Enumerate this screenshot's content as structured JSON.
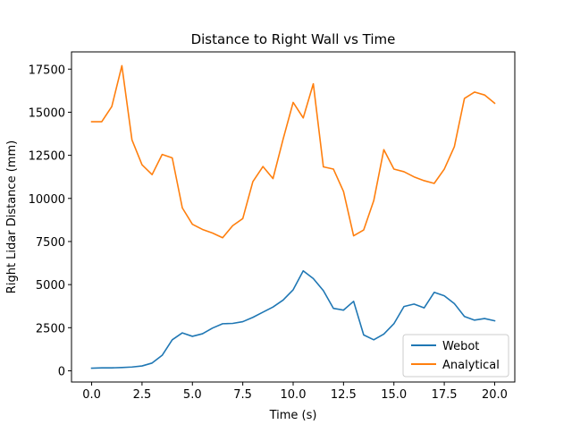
{
  "chart_data": {
    "type": "line",
    "title": "Distance to Right Wall vs Time",
    "xlabel": "Time (s)",
    "ylabel": "Right Lidar Distance (mm)",
    "xlim": [
      -1.0,
      21.0
    ],
    "ylim": [
      -650,
      18500
    ],
    "xticks": [
      0.0,
      2.5,
      5.0,
      7.5,
      10.0,
      12.5,
      15.0,
      17.5,
      20.0
    ],
    "xtick_labels": [
      "0.0",
      "2.5",
      "5.0",
      "7.5",
      "10.0",
      "12.5",
      "15.0",
      "17.5",
      "20.0"
    ],
    "yticks": [
      0,
      2500,
      5000,
      7500,
      10000,
      12500,
      15000,
      17500
    ],
    "ytick_labels": [
      "0",
      "2500",
      "5000",
      "7500",
      "10000",
      "12500",
      "15000",
      "17500"
    ],
    "grid": false,
    "legend_position": "lower right",
    "x": [
      0.0,
      0.5,
      1.0,
      1.5,
      2.0,
      2.5,
      3.0,
      3.5,
      4.0,
      4.5,
      5.0,
      5.5,
      6.0,
      6.5,
      7.0,
      7.5,
      8.0,
      8.5,
      9.0,
      9.5,
      10.0,
      10.5,
      11.0,
      11.5,
      12.0,
      12.5,
      13.0,
      13.5,
      14.0,
      14.5,
      15.0,
      15.5,
      16.0,
      16.5,
      17.0,
      17.5,
      18.0,
      18.5,
      19.0,
      19.5,
      20.0
    ],
    "series": [
      {
        "name": "Webot",
        "color": "#1f77b4",
        "values": [
          150,
          170,
          170,
          190,
          220,
          280,
          450,
          900,
          1800,
          2200,
          2000,
          2150,
          2480,
          2730,
          2750,
          2850,
          3100,
          3400,
          3700,
          4100,
          4700,
          5800,
          5350,
          4650,
          3620,
          3520,
          4030,
          2080,
          1800,
          2130,
          2730,
          3730,
          3870,
          3650,
          4550,
          4350,
          3900,
          3150,
          2940,
          3030,
          2900
        ]
      },
      {
        "name": "Analytical",
        "color": "#ff7f0e",
        "values": [
          14450,
          14450,
          15330,
          17700,
          13400,
          11950,
          11380,
          12550,
          12350,
          9450,
          8500,
          8200,
          7990,
          7720,
          8420,
          8830,
          10970,
          11850,
          11150,
          13430,
          15570,
          14670,
          16650,
          11830,
          11700,
          10400,
          7830,
          8170,
          9870,
          12830,
          11700,
          11550,
          11250,
          11030,
          10870,
          11700,
          13000,
          15800,
          16170,
          16000,
          15520
        ]
      }
    ]
  }
}
